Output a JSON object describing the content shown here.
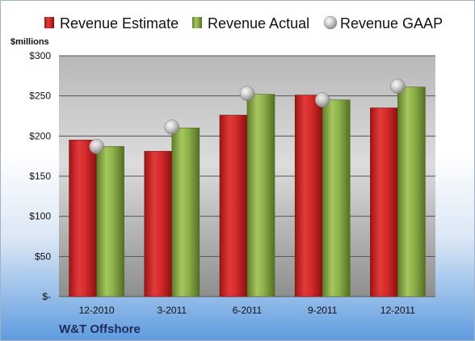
{
  "company": "W&T Offshore",
  "chart_data": {
    "type": "bar",
    "categories": [
      "12-2010",
      "3-2011",
      "6-2011",
      "9-2011",
      "12-2011"
    ],
    "series": [
      {
        "name": "Revenue Estimate",
        "kind": "bar",
        "color": "#d42a2a",
        "values": [
          195,
          181,
          226,
          251,
          235
        ]
      },
      {
        "name": "Revenue Actual",
        "kind": "bar",
        "color": "#8cb04a",
        "values": [
          187,
          210,
          252,
          245,
          261
        ]
      },
      {
        "name": "Revenue GAAP",
        "kind": "marker",
        "color": "#c8c8c8",
        "values": [
          187,
          211,
          253,
          245,
          262
        ]
      }
    ],
    "ylabel": "$millions",
    "ylim": [
      0,
      300
    ],
    "yticks": [
      0,
      50,
      100,
      150,
      200,
      250,
      300
    ],
    "ytick_labels": [
      "$-",
      "$50",
      "$100",
      "$150",
      "$200",
      "$250",
      "$300"
    ],
    "grid": true,
    "legend": "top"
  }
}
